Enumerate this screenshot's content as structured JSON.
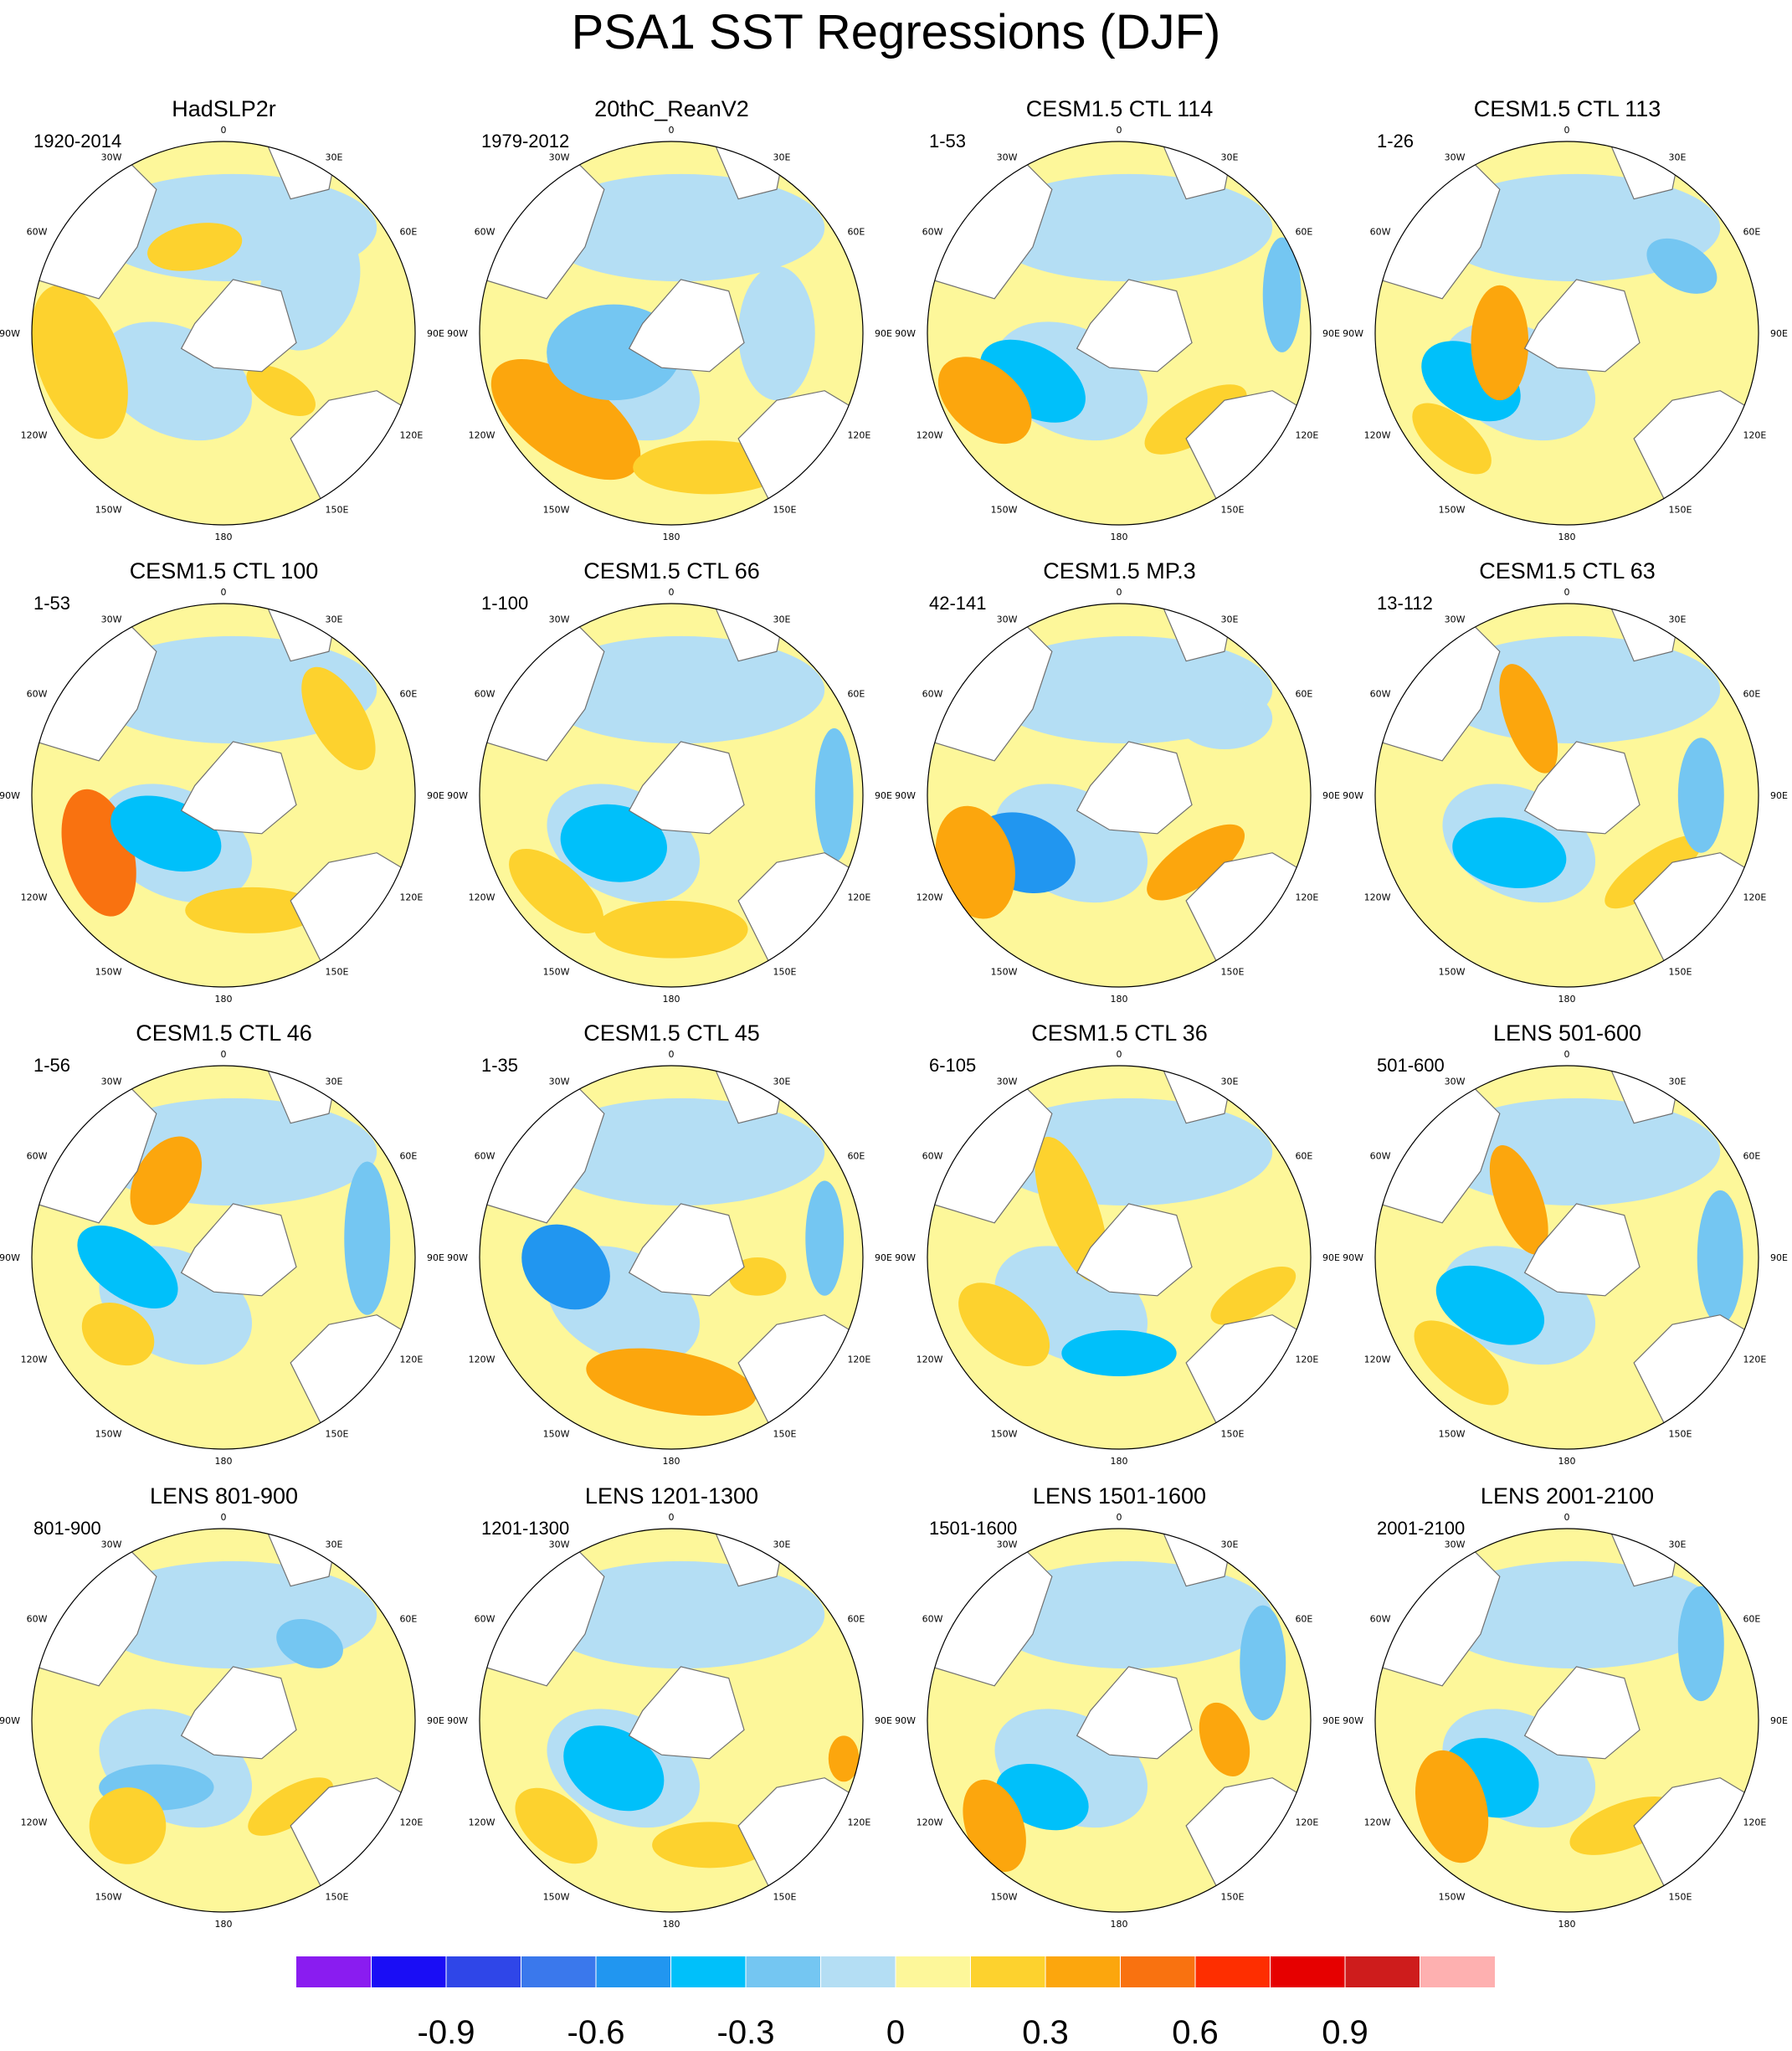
{
  "title": "PSA1 SST Regressions (DJF)",
  "longitude_labels": [
    "0",
    "30E",
    "60E",
    "90E",
    "120E",
    "150E",
    "180",
    "150W",
    "120W",
    "90W",
    "60W",
    "30W"
  ],
  "panels": [
    {
      "title": "HadSLP2r",
      "period": "1920-2014"
    },
    {
      "title": "20thC_ReanV2",
      "period": "1979-2012"
    },
    {
      "title": "CESM1.5 CTL 114",
      "period": "1-53"
    },
    {
      "title": "CESM1.5 CTL 113",
      "period": "1-26"
    },
    {
      "title": "CESM1.5 CTL 100",
      "period": "1-53"
    },
    {
      "title": "CESM1.5 CTL 66",
      "period": "1-100"
    },
    {
      "title": "CESM1.5 MP.3",
      "period": "42-141"
    },
    {
      "title": "CESM1.5 CTL 63",
      "period": "13-112"
    },
    {
      "title": "CESM1.5 CTL 46",
      "period": "1-56"
    },
    {
      "title": "CESM1.5 CTL 45",
      "period": "1-35"
    },
    {
      "title": "CESM1.5 CTL 36",
      "period": "6-105"
    },
    {
      "title": "LENS 501-600",
      "period": "501-600"
    },
    {
      "title": "LENS 801-900",
      "period": "801-900"
    },
    {
      "title": "LENS 1201-1300",
      "period": "1201-1300"
    },
    {
      "title": "LENS 1501-1600",
      "period": "1501-1600"
    },
    {
      "title": "LENS 2001-2100",
      "period": "2001-2100"
    }
  ],
  "colorbar": {
    "colors": [
      "#8a1cf0",
      "#1a0df5",
      "#2f46e8",
      "#3a78ec",
      "#2196f0",
      "#00c0fa",
      "#74c6f2",
      "#b4def4",
      "#fdf79a",
      "#fdd22e",
      "#fca60d",
      "#f97210",
      "#fe2e00",
      "#e60000",
      "#ce1c1c",
      "#feb0b0"
    ],
    "labels": [
      {
        "text": "-0.9",
        "boundary": 2
      },
      {
        "text": "-0.6",
        "boundary": 4
      },
      {
        "text": "-0.3",
        "boundary": 6
      },
      {
        "text": "0",
        "boundary": 8
      },
      {
        "text": "0.3",
        "boundary": 10
      },
      {
        "text": "0.6",
        "boundary": 12
      },
      {
        "text": "0.9",
        "boundary": 14
      }
    ]
  }
}
